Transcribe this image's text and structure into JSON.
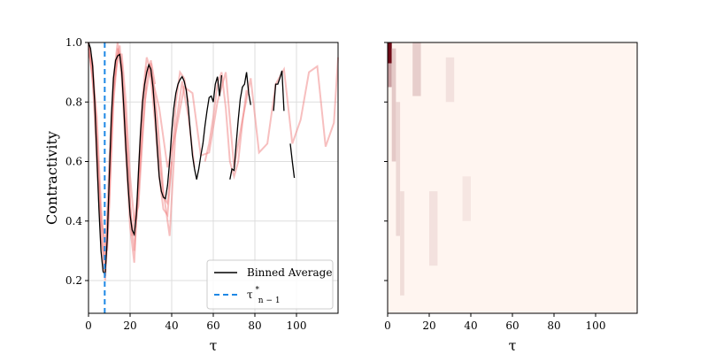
{
  "chart_data": [
    {
      "type": "line",
      "xlabel": "τ",
      "ylabel": "Contractivity",
      "xlim": [
        0,
        120
      ],
      "ylim": [
        0.09,
        1.0
      ],
      "xticks": [
        0,
        20,
        40,
        60,
        80,
        100
      ],
      "yticks": [
        0.2,
        0.4,
        0.6,
        0.8,
        1.0
      ],
      "yticklabels": [
        "0.2",
        "0.4",
        "0.6",
        "0.8",
        "1.0"
      ],
      "grid": true,
      "legend_position": "lower-right",
      "legend": [
        {
          "label": "Binned Average",
          "style": "solid",
          "color": "#000000"
        },
        {
          "label": "τ",
          "sup": "*",
          "sub": "n − 1",
          "style": "dashed",
          "color": "#1e88e5"
        }
      ],
      "vline_x": 7.8,
      "series": [
        {
          "role": "binned-average",
          "color": "#000000",
          "x": [
            0,
            1,
            2,
            3,
            4,
            5,
            6,
            7,
            8,
            9,
            10,
            11,
            12,
            13,
            14,
            15,
            16,
            17,
            18,
            19,
            20,
            21,
            22,
            23,
            24,
            25,
            26,
            27,
            28,
            29,
            30,
            31,
            32,
            33,
            34,
            35,
            36,
            37,
            38,
            39,
            40,
            41,
            42,
            43,
            44,
            45,
            46,
            47,
            48,
            49,
            50,
            51,
            52,
            53,
            54,
            55,
            56,
            57,
            58,
            59,
            60,
            61,
            62,
            63,
            64
          ],
          "y": [
            1.0,
            0.98,
            0.92,
            0.8,
            0.62,
            0.44,
            0.3,
            0.23,
            0.22,
            0.34,
            0.55,
            0.75,
            0.88,
            0.94,
            0.955,
            0.96,
            0.9,
            0.78,
            0.64,
            0.52,
            0.42,
            0.37,
            0.355,
            0.42,
            0.56,
            0.7,
            0.8,
            0.86,
            0.9,
            0.925,
            0.91,
            0.85,
            0.76,
            0.65,
            0.55,
            0.5,
            0.48,
            0.475,
            0.52,
            0.6,
            0.7,
            0.78,
            0.83,
            0.86,
            0.875,
            0.885,
            0.87,
            0.84,
            0.78,
            0.7,
            0.62,
            0.575,
            0.54,
            0.575,
            0.62,
            0.66,
            0.72,
            0.77,
            0.815,
            0.82,
            0.8,
            0.86,
            0.885,
            0.82,
            0.89
          ]
        },
        {
          "role": "binned-average",
          "color": "#000000",
          "x": [
            68,
            69,
            70,
            71,
            72,
            73,
            74,
            75,
            76,
            77,
            78
          ],
          "y": [
            0.54,
            0.575,
            0.57,
            0.66,
            0.74,
            0.81,
            0.85,
            0.86,
            0.9,
            0.83,
            0.79
          ]
        },
        {
          "role": "binned-average",
          "color": "#000000",
          "x": [
            89,
            90,
            91,
            92,
            93,
            94
          ],
          "y": [
            0.77,
            0.86,
            0.86,
            0.88,
            0.905,
            0.77
          ]
        },
        {
          "role": "binned-average",
          "color": "#000000",
          "x": [
            97,
            98,
            99
          ],
          "y": [
            0.66,
            0.6,
            0.545
          ]
        },
        {
          "role": "sample",
          "color": "#f08080",
          "x": [
            0,
            2,
            4,
            6,
            8,
            10,
            12,
            14,
            16,
            18,
            20,
            22,
            24,
            26,
            28,
            30,
            32,
            34,
            36,
            38,
            40,
            42,
            44,
            46,
            48
          ],
          "y": [
            1.0,
            0.93,
            0.7,
            0.38,
            0.2,
            0.45,
            0.82,
            0.98,
            0.93,
            0.72,
            0.45,
            0.3,
            0.5,
            0.78,
            0.92,
            0.88,
            0.73,
            0.55,
            0.44,
            0.42,
            0.6,
            0.8,
            0.9,
            0.88,
            0.8
          ]
        },
        {
          "role": "sample",
          "color": "#f08080",
          "x": [
            0,
            2,
            4,
            6,
            8,
            10,
            12,
            14,
            16,
            18,
            20,
            22,
            24,
            26,
            28,
            30,
            32,
            34,
            36,
            38,
            40
          ],
          "y": [
            0.99,
            0.88,
            0.6,
            0.35,
            0.25,
            0.6,
            0.88,
            1.0,
            0.88,
            0.62,
            0.38,
            0.26,
            0.55,
            0.82,
            0.95,
            0.9,
            0.78,
            0.62,
            0.48,
            0.46,
            0.6
          ]
        },
        {
          "role": "sample",
          "color": "#f08080",
          "x": [
            0,
            3,
            6,
            9,
            12,
            15,
            18,
            21,
            24,
            27,
            30,
            33,
            36,
            39,
            42,
            45,
            48,
            51
          ],
          "y": [
            1.0,
            0.8,
            0.4,
            0.3,
            0.85,
            0.99,
            0.72,
            0.35,
            0.5,
            0.8,
            0.93,
            0.75,
            0.5,
            0.35,
            0.72,
            0.87,
            0.75,
            0.58
          ]
        },
        {
          "role": "sample",
          "color": "#f08080",
          "x": [
            0,
            2,
            4,
            6,
            8,
            10,
            12,
            14,
            16,
            18,
            20,
            22,
            24,
            26,
            28,
            30,
            32
          ],
          "y": [
            0.98,
            0.9,
            0.75,
            0.45,
            0.28,
            0.5,
            0.8,
            0.96,
            0.96,
            0.8,
            0.55,
            0.4,
            0.45,
            0.68,
            0.88,
            0.94,
            0.86
          ]
        },
        {
          "role": "sample",
          "color": "#f08080",
          "x": [
            30,
            34,
            38,
            42,
            46,
            50,
            54,
            58,
            62,
            66,
            70,
            74,
            78,
            82,
            86,
            90,
            94,
            98,
            102,
            106,
            110,
            114,
            118,
            120
          ],
          "y": [
            0.9,
            0.78,
            0.58,
            0.7,
            0.85,
            0.83,
            0.62,
            0.63,
            0.8,
            0.9,
            0.58,
            0.74,
            0.88,
            0.63,
            0.66,
            0.86,
            0.91,
            0.66,
            0.74,
            0.9,
            0.92,
            0.65,
            0.73,
            0.95
          ]
        },
        {
          "role": "sample",
          "color": "#f08080",
          "x": [
            56,
            58,
            60,
            62,
            64,
            66,
            68,
            70,
            72,
            74,
            76
          ],
          "y": [
            0.6,
            0.66,
            0.75,
            0.86,
            0.9,
            0.78,
            0.6,
            0.55,
            0.6,
            0.73,
            0.84
          ]
        }
      ]
    },
    {
      "type": "heatmap",
      "xlabel": "τ",
      "xlim": [
        0,
        120
      ],
      "xticks": [
        0,
        20,
        40,
        60,
        80,
        100
      ],
      "colormap": "Reds",
      "background_color": "#fff5f0",
      "dense_regions": [
        {
          "x": [
            0,
            2
          ],
          "y": [
            0.93,
            1.0
          ],
          "level": 0.95
        },
        {
          "x": [
            0,
            2
          ],
          "y": [
            0.85,
            0.93
          ],
          "level": 0.35
        },
        {
          "x": [
            2,
            4
          ],
          "y": [
            0.6,
            0.98
          ],
          "level": 0.18
        },
        {
          "x": [
            4,
            6
          ],
          "y": [
            0.35,
            0.8
          ],
          "level": 0.12
        },
        {
          "x": [
            6,
            8
          ],
          "y": [
            0.15,
            0.5
          ],
          "level": 0.1
        },
        {
          "x": [
            12,
            16
          ],
          "y": [
            0.82,
            1.0
          ],
          "level": 0.16
        },
        {
          "x": [
            20,
            24
          ],
          "y": [
            0.25,
            0.5
          ],
          "level": 0.08
        },
        {
          "x": [
            28,
            32
          ],
          "y": [
            0.8,
            0.95
          ],
          "level": 0.08
        },
        {
          "x": [
            36,
            40
          ],
          "y": [
            0.4,
            0.55
          ],
          "level": 0.06
        }
      ]
    }
  ]
}
